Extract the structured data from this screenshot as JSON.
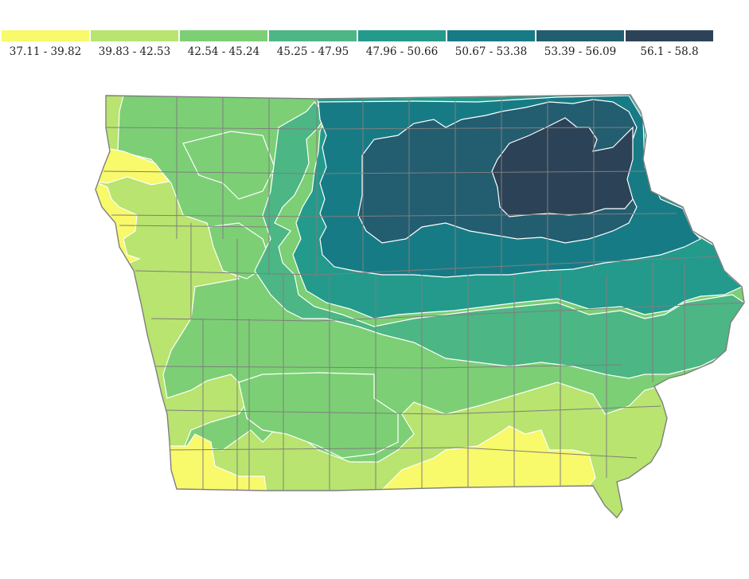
{
  "legend": {
    "classes": [
      {
        "label": "37.11 - 39.82",
        "color": "#f8f96b"
      },
      {
        "label": "39.83 - 42.53",
        "color": "#b8e46f"
      },
      {
        "label": "42.54 - 45.24",
        "color": "#7ccf75"
      },
      {
        "label": "45.25 - 47.95",
        "color": "#4cb685"
      },
      {
        "label": "47.96 - 50.66",
        "color": "#239a8c"
      },
      {
        "label": "50.67 - 53.38",
        "color": "#177b85"
      },
      {
        "label": "53.39 - 56.09",
        "color": "#235d70"
      },
      {
        "label": "56.1 - 58.8",
        "color": "#2c4257"
      }
    ]
  },
  "map": {
    "region": "Iowa",
    "county_border_color": "#7f7f7f",
    "contour_line_color": "#ffffff"
  }
}
